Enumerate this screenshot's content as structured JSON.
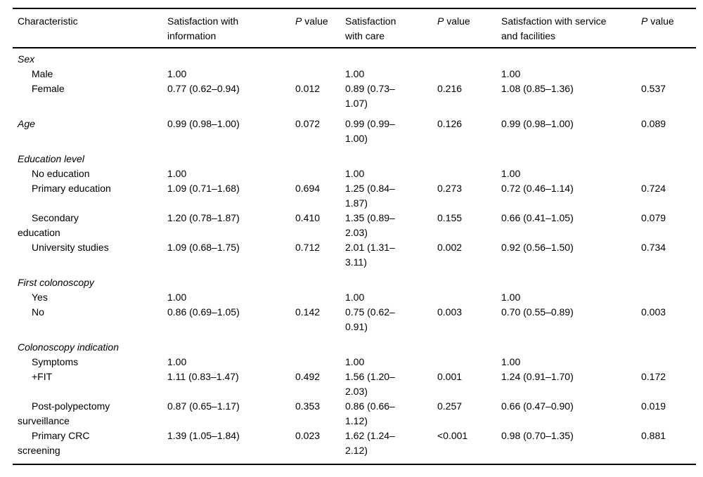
{
  "table": {
    "columns": [
      {
        "id": "label",
        "header": "Characteristic"
      },
      {
        "id": "or1",
        "header": "Satisfaction with\ninformation"
      },
      {
        "id": "p1",
        "header_prefix": "P",
        "header_rest": " value"
      },
      {
        "id": "or2",
        "header": "Satisfaction\nwith care"
      },
      {
        "id": "p2",
        "header_prefix": "P",
        "header_rest": " value"
      },
      {
        "id": "or3",
        "header": "Satisfaction with service\nand facilities"
      },
      {
        "id": "p3",
        "header_prefix": "P",
        "header_rest": " value"
      }
    ],
    "rows": [
      {
        "type": "group",
        "label": "Sex"
      },
      {
        "type": "item",
        "label": "Male",
        "or1": "1.00",
        "p1": "",
        "or2": "1.00",
        "p2": "",
        "or3": "1.00",
        "p3": ""
      },
      {
        "type": "item",
        "label": "Female",
        "or1": "0.77 (0.62–0.94)",
        "p1": "0.012",
        "or2": "0.89 (0.73–\n1.07)",
        "p2": "0.216",
        "or3": "1.08 (0.85–1.36)",
        "p3": "0.537"
      },
      {
        "type": "group",
        "label": "Age",
        "or1": "0.99 (0.98–1.00)",
        "p1": "0.072",
        "or2": "0.99 (0.99–\n1.00)",
        "p2": "0.126",
        "or3": "0.99 (0.98–1.00)",
        "p3": "0.089"
      },
      {
        "type": "group",
        "label": "Education level"
      },
      {
        "type": "item",
        "label": "No education",
        "or1": "1.00",
        "p1": "",
        "or2": "1.00",
        "p2": "",
        "or3": "1.00",
        "p3": ""
      },
      {
        "type": "item",
        "label": "Primary education",
        "or1": "1.09 (0.71–1.68)",
        "p1": "0.694",
        "or2": "1.25 (0.84–\n1.87)",
        "p2": "0.273",
        "or3": "0.72 (0.46–1.14)",
        "p3": "0.724"
      },
      {
        "type": "item",
        "label": "Secondary\neducation",
        "or1": "1.20 (0.78–1.87)",
        "p1": "0.410",
        "or2": "1.35 (0.89–\n2.03)",
        "p2": "0.155",
        "or3": "0.66 (0.41–1.05)",
        "p3": "0.079"
      },
      {
        "type": "item",
        "label": "University studies",
        "or1": "1.09 (0.68–1.75)",
        "p1": "0.712",
        "or2": "2.01 (1.31–\n3.11)",
        "p2": "0.002",
        "or3": "0.92 (0.56–1.50)",
        "p3": "0.734"
      },
      {
        "type": "group",
        "label": "First colonoscopy"
      },
      {
        "type": "item",
        "label": "Yes",
        "or1": "1.00",
        "p1": "",
        "or2": "1.00",
        "p2": "",
        "or3": "1.00",
        "p3": ""
      },
      {
        "type": "item",
        "label": "No",
        "or1": "0.86 (0.69–1.05)",
        "p1": "0.142",
        "or2": "0.75 (0.62–\n0.91)",
        "p2": "0.003",
        "or3": "0.70 (0.55–0.89)",
        "p3": "0.003"
      },
      {
        "type": "group",
        "label": "Colonoscopy indication"
      },
      {
        "type": "item",
        "label": "Symptoms",
        "or1": "1.00",
        "p1": "",
        "or2": "1.00",
        "p2": "",
        "or3": "1.00",
        "p3": ""
      },
      {
        "type": "item",
        "label": "+FIT",
        "or1": "1.11 (0.83–1.47)",
        "p1": "0.492",
        "or2": "1.56 (1.20–\n2.03)",
        "p2": "0.001",
        "or3": "1.24 (0.91–1.70)",
        "p3": "0.172"
      },
      {
        "type": "item",
        "label": "Post-polypectomy\nsurveillance",
        "or1": "0.87 (0.65–1.17)",
        "p1": "0.353",
        "or2": "0.86 (0.66–\n1.12)",
        "p2": "0.257",
        "or3": "0.66 (0.47–0.90)",
        "p3": "0.019"
      },
      {
        "type": "item",
        "label": "Primary CRC\nscreening",
        "or1": "1.39 (1.05–1.84)",
        "p1": "0.023",
        "or2": "1.62 (1.24–\n2.12)",
        "p2": "<0.001",
        "or3": "0.98 (0.70–1.35)",
        "p3": "0.881"
      }
    ]
  }
}
